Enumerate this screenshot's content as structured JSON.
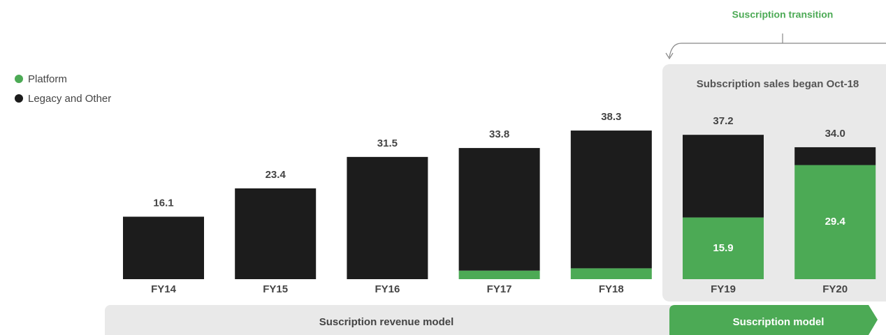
{
  "chart_data": {
    "type": "stacked_bar",
    "annotations": {
      "transition": "Suscription transition",
      "panel": "Subscription sales began Oct-18",
      "revenue_model": "Suscription revenue model",
      "subscription_model": "Suscription model"
    },
    "categories": [
      "FY14",
      "FY15",
      "FY16",
      "FY17",
      "FY18",
      "FY19",
      "FY20"
    ],
    "series": [
      {
        "name": "Platform",
        "color": "#4caa55",
        "values": [
          null,
          null,
          null,
          2.2,
          2.8,
          15.9,
          29.4
        ]
      },
      {
        "name": "Legacy and Other",
        "color": "#1c1c1c",
        "values": [
          16.1,
          23.4,
          31.5,
          31.6,
          35.5,
          21.3,
          4.6
        ]
      }
    ],
    "totals": [
      16.1,
      23.4,
      31.5,
      33.8,
      38.3,
      37.2,
      34.0
    ],
    "total_labels": [
      "16.1",
      "23.4",
      "31.5",
      "33.8",
      "38.3",
      "37.2",
      "34.0"
    ]
  }
}
